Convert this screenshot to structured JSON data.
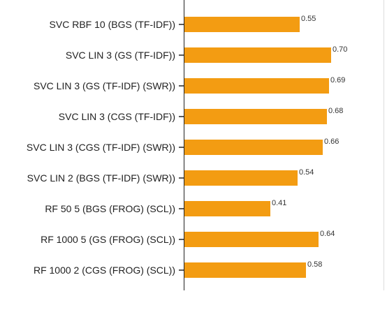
{
  "chart_data": {
    "type": "bar",
    "orientation": "horizontal",
    "categories": [
      "SVC RBF 10 (BGS (TF-IDF))",
      "SVC LIN 3 (GS (TF-IDF))",
      "SVC LIN 3 (GS (TF-IDF) (SWR))",
      "SVC LIN 3 (CGS (TF-IDF))",
      "SVC LIN 3 (CGS (TF-IDF) (SWR))",
      "SVC LIN 2 (BGS (TF-IDF) (SWR))",
      "RF 50 5 (BGS (FROG) (SCL))",
      "RF 1000 5 (GS (FROG) (SCL))",
      "RF 1000 2 (CGS (FROG) (SCL))"
    ],
    "values": [
      0.55,
      0.7,
      0.69,
      0.68,
      0.66,
      0.54,
      0.41,
      0.64,
      0.58
    ],
    "value_labels": [
      "0.55",
      "0.70",
      "0.69",
      "0.68",
      "0.66",
      "0.54",
      "0.41",
      "0.64",
      "0.58"
    ],
    "xlim": [
      0,
      0.95
    ],
    "bar_color": "#f39c12",
    "axis_color": "#222222",
    "grid": false,
    "legend": "none"
  }
}
